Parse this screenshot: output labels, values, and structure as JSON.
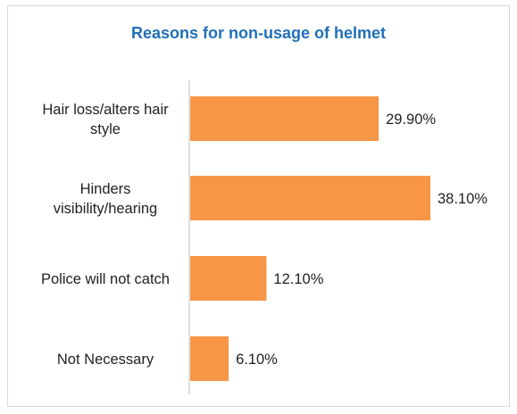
{
  "chart_data": {
    "type": "bar",
    "orientation": "horizontal",
    "title": "Reasons for non-usage of helmet",
    "categories": [
      [
        "Hair loss/alters hair",
        "style"
      ],
      [
        "Hinders",
        "visibility/hearing"
      ],
      [
        "Police will not catch"
      ],
      [
        "Not Necessary"
      ]
    ],
    "values": [
      29.9,
      38.1,
      12.1,
      6.1
    ],
    "value_labels": [
      "29.90%",
      "38.10%",
      "12.10%",
      "6.10%"
    ],
    "unit": "%",
    "xlim": [
      0,
      40
    ],
    "grid": false,
    "legend": "none",
    "colors": {
      "bar": "#f79646",
      "title": "#1f6fb8",
      "axis": "#bfbfbf"
    }
  }
}
